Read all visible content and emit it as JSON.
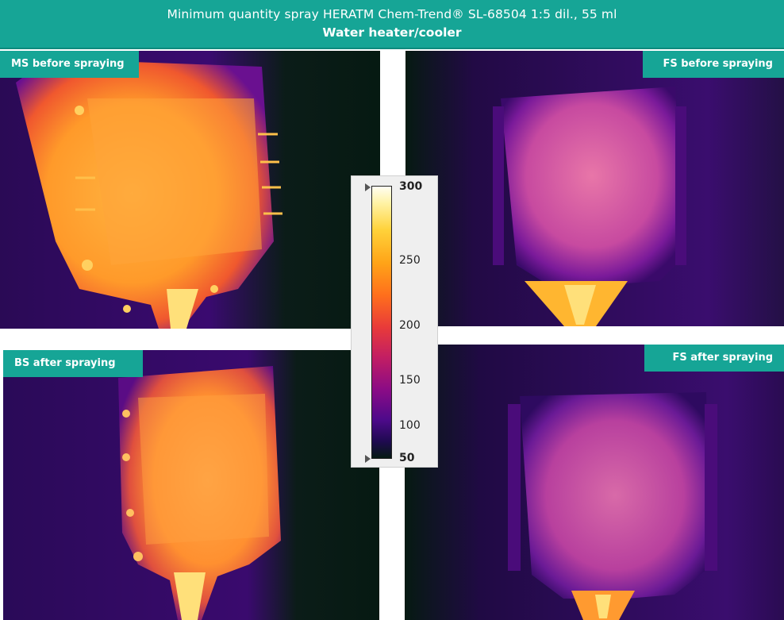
{
  "header": {
    "line1": "Minimum quantity spray HERATM Chem-Trend® SL-68504 1:5 dil., 55 ml",
    "line2": "Water heater/cooler"
  },
  "panels": {
    "ms_before": {
      "label": "MS before spraying"
    },
    "fs_before": {
      "label": "FS before spraying"
    },
    "bs_after": {
      "label": "BS after spraying"
    },
    "fs_after": {
      "label": "FS after spraying"
    }
  },
  "colorbar": {
    "max_label": "300",
    "l250": "250",
    "l200": "200",
    "l150": "150",
    "l100": "100",
    "min_label": "50"
  },
  "colors": {
    "accent": "#16a596",
    "background_dark": "#061a12",
    "hot": "#ffb020",
    "warm": "#e85a8a",
    "cool": "#6a1aa0"
  }
}
